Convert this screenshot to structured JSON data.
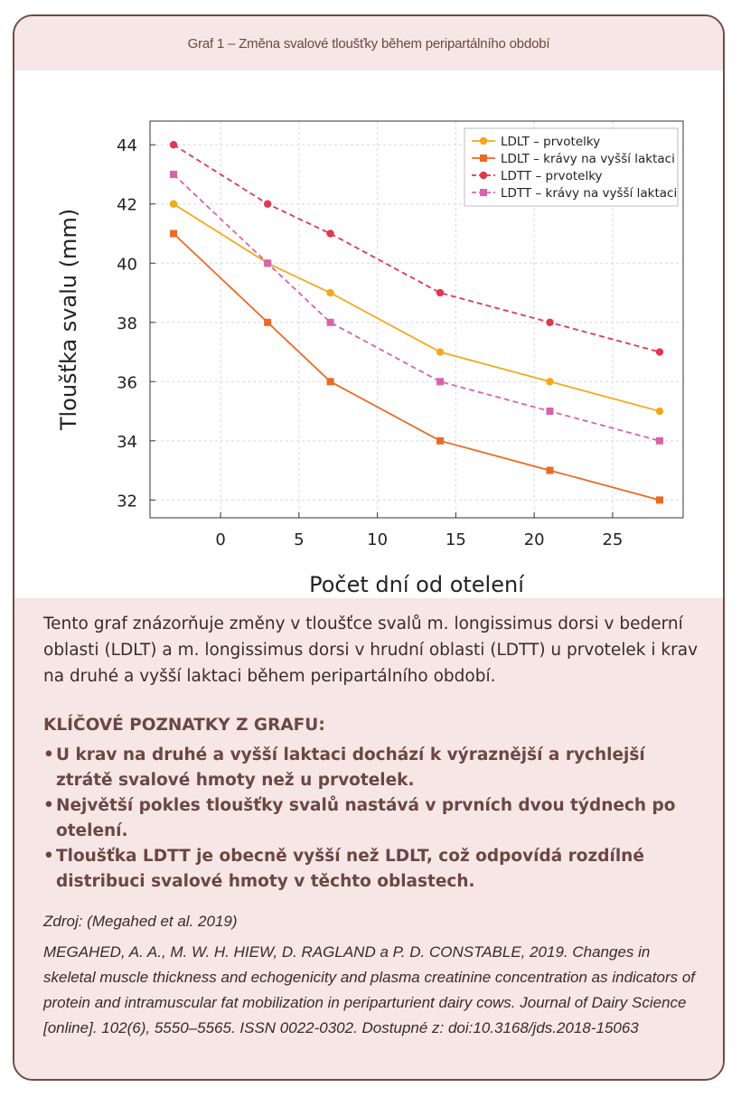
{
  "header": {
    "title": "Graf 1 – Změna svalové tloušťky během peripartálního období"
  },
  "colors": {
    "frame": "#6e4a45",
    "panel_bg": "#f6e6e5",
    "heading_text": "#6b4743"
  },
  "chart_data": {
    "type": "line",
    "xlabel": "Počet dní od otelení",
    "ylabel": "Tloušťka svalu (mm)",
    "xlim": [
      -4.5,
      29.5
    ],
    "ylim": [
      31.4,
      44.8
    ],
    "xticks": [
      0,
      5,
      10,
      15,
      20,
      25
    ],
    "yticks": [
      32,
      34,
      36,
      38,
      40,
      42,
      44
    ],
    "grid": true,
    "legend_position": "top-right",
    "x": [
      -3,
      3,
      7,
      14,
      21,
      28
    ],
    "series": [
      {
        "name": "LDLT – prvotelky",
        "values": [
          42,
          40,
          39,
          37,
          36,
          35
        ],
        "color": "#f5a81c",
        "line": "solid",
        "marker": "circle"
      },
      {
        "name": "LDLT – krávy na vyšší laktaci",
        "values": [
          41,
          38,
          36,
          34,
          33,
          32
        ],
        "color": "#ea6a25",
        "line": "solid",
        "marker": "square"
      },
      {
        "name": "LDTT – prvotelky",
        "values": [
          44,
          42,
          41,
          39,
          38,
          37
        ],
        "color": "#e0384f",
        "line": "dashed",
        "marker": "circle"
      },
      {
        "name": "LDTT – krávy na vyšší laktaci",
        "values": [
          43,
          40,
          38,
          36,
          35,
          34
        ],
        "color": "#d963a7",
        "line": "dashed",
        "marker": "square"
      }
    ]
  },
  "description": "Tento graf znázorňuje změny v tloušťce svalů m. longissimus dorsi v bederní oblasti (LDLT) a m. longissimus dorsi v hrudní oblasti (LDTT) u prvotelek i krav na druhé a vyšší laktaci během peripartálního období.",
  "key_findings": {
    "title": "KLÍČOVÉ POZNATKY Z GRAFU:",
    "bullet": "•",
    "items": [
      "U krav na druhé a vyšší laktaci dochází k výraznější a rychlejší ztrátě svalové hmoty než u prvotelek.",
      "Největší pokles tloušťky svalů nastává v prvních dvou týdnech po otelení.",
      "Tloušťka LDTT je obecně vyšší než LDLT, což odpovídá rozdílné distribuci svalové hmoty v těchto oblastech."
    ]
  },
  "source": {
    "label": "Zdroj: (Megahed et al. 2019)",
    "citation": "MEGAHED, A. A., M. W. H. HIEW, D. RAGLAND a P. D. CONSTABLE, 2019. Changes in skeletal muscle thickness and echogenicity and plasma creatinine concentration as indicators of protein and intramuscular fat mobilization in periparturient dairy cows. Journal of Dairy Science [online]. 102(6), 5550–5565. ISSN 0022-0302. Dostupné z: doi:10.3168/jds.2018-15063"
  }
}
